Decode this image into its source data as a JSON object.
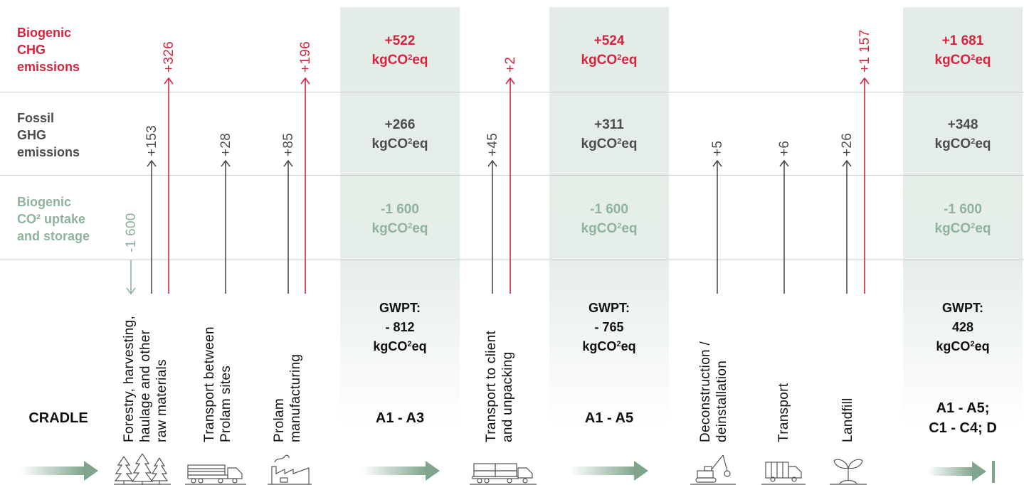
{
  "rows": {
    "biogenic_ghg": [
      "Biogenic",
      "CHG",
      "emissions"
    ],
    "fossil_ghg": [
      "Fossil",
      "GHG",
      "emissions"
    ],
    "biogenic_uptake": [
      "Biogenic",
      "CO² uptake",
      "and storage"
    ]
  },
  "colors": {
    "biogenic_ghg": "#d6243f",
    "fossil_ghg": "#4d4d4d",
    "biogenic_uptake": "#8fb39c",
    "panel": "#e4ece7"
  },
  "steps": [
    {
      "label_lines": [
        "Forestry, harvesting,",
        "haulage and other",
        "raw materials"
      ],
      "biogenic_uptake": "-1 600",
      "fossil": "+153",
      "biogenic": "+326",
      "icon": "trees-icon"
    },
    {
      "label_lines": [
        "Transport between",
        "Prolam sites"
      ],
      "fossil": "+28",
      "icon": "log-truck-icon"
    },
    {
      "label_lines": [
        "Prolam",
        "manufacturing"
      ],
      "fossil": "+85",
      "biogenic": "+196",
      "icon": "factory-icon"
    },
    {
      "label_lines": [
        "Transport to client",
        "and unpacking"
      ],
      "fossil": "+45",
      "biogenic": "+2",
      "icon": "truck-icon"
    },
    {
      "label_lines": [
        "Deconstruction /",
        "deinstallation"
      ],
      "fossil": "+5",
      "icon": "crane-icon"
    },
    {
      "label_lines": [
        "Transport"
      ],
      "fossil": "+6",
      "icon": "garbage-truck-icon"
    },
    {
      "label_lines": [
        "Landfill"
      ],
      "fossil": "+26",
      "biogenic": "+1 157",
      "icon": "sprout-icon"
    }
  ],
  "stages": [
    {
      "name_lines": [
        "CRADLE"
      ]
    },
    {
      "name_lines": [
        "A1 - A3"
      ],
      "biogenic": "+522",
      "fossil": "+266",
      "uptake": "-1 600",
      "unit_prefix": "kgCO",
      "unit_sup": "2",
      "unit_suffix": "eq",
      "gwpt_label": "GWPT:",
      "gwpt_value": "- 812"
    },
    {
      "name_lines": [
        "A1 - A5"
      ],
      "biogenic": "+524",
      "fossil": "+311",
      "uptake": "-1 600",
      "unit_prefix": "kgCO",
      "unit_sup": "2",
      "unit_suffix": "eq",
      "gwpt_label": "GWPT:",
      "gwpt_value": "- 765"
    },
    {
      "name_lines": [
        "A1 - A5;",
        "C1 - C4; D"
      ],
      "biogenic": "+1 681",
      "fossil": "+348",
      "uptake": "-1 600",
      "unit_prefix": "kgCO",
      "unit_sup": "2",
      "unit_suffix": "eq",
      "gwpt_label": "GWPT:",
      "gwpt_value": "428"
    }
  ]
}
